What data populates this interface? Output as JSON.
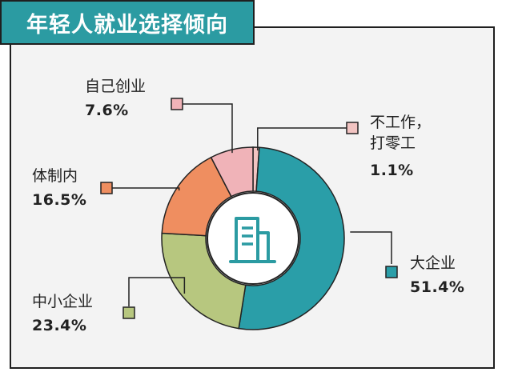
{
  "title": "年轻人就业选择倾向",
  "colors": {
    "accent": "#2b9ba2",
    "frame_bg": "#f3f3f3",
    "icon": "#2b9ba2"
  },
  "chart_data": {
    "type": "pie",
    "variant": "donut",
    "title": "年轻人就业选择倾向",
    "center_icon": "building-icon",
    "slices": [
      {
        "label": "不工作，打零工",
        "display": "不工作，\n打零工",
        "value": 1.1,
        "value_label": "1.1%",
        "color": "#f2c4c2"
      },
      {
        "label": "大企业",
        "display": "大企业",
        "value": 51.4,
        "value_label": "51.4%",
        "color": "#2a9ea8"
      },
      {
        "label": "中小企业",
        "display": "中小企业",
        "value": 23.4,
        "value_label": "23.4%",
        "color": "#b7c77f"
      },
      {
        "label": "体制内",
        "display": "体制内",
        "value": 16.5,
        "value_label": "16.5%",
        "color": "#ef8e60"
      },
      {
        "label": "自己创业",
        "display": "自己创业",
        "value": 7.6,
        "value_label": "7.6%",
        "color": "#f0b3b8"
      }
    ]
  }
}
